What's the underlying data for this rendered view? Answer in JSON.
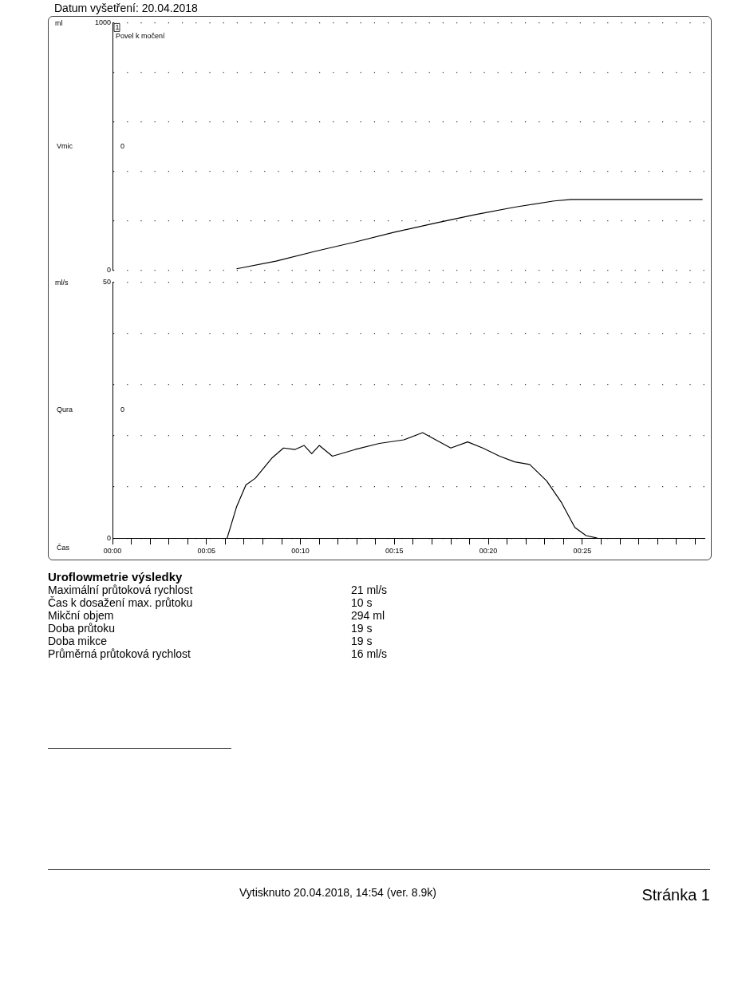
{
  "chart_data": [
    {
      "type": "other",
      "title": "Datum vyšetření: 20.04.2018"
    },
    {
      "type": "line",
      "ylabel": "Vmic",
      "xlim": [
        0,
        31.5
      ],
      "ylim": [
        0,
        1000
      ],
      "yticks": [
        0,
        {
          "value": 200,
          "label": null
        },
        {
          "value": 400,
          "label": null
        },
        {
          "value": 600,
          "label": null
        },
        {
          "value": 800,
          "label": null
        },
        1000
      ],
      "grid": "y",
      "tick_labels": "y",
      "marker": "none",
      "line_style": "solid",
      "annotations": [
        "ml",
        "0",
        "1",
        "Povel k močení"
      ],
      "series": [
        {
          "color": "#000000",
          "x": [
            6.6,
            8.7,
            10.8,
            12.9,
            15.0,
            17.2,
            19.3,
            21.4,
            23.5,
            24.4,
            31.4
          ],
          "values": [
            6,
            37,
            77,
            114,
            154,
            191,
            225,
            255,
            280,
            286,
            286
          ]
        }
      ]
    },
    {
      "type": "line",
      "ylabel": "Qura",
      "xlabel": "Čas",
      "xlim": [
        0,
        31.5
      ],
      "ylim": [
        0,
        50
      ],
      "yticks": [
        0,
        {
          "value": 10,
          "label": null
        },
        {
          "value": 20,
          "label": null
        },
        {
          "value": 30,
          "label": null
        },
        {
          "value": 40,
          "label": null
        },
        50
      ],
      "xticks": [
        {
          "value": 0,
          "label": "00:00"
        },
        {
          "value": 1,
          "label": null
        },
        {
          "value": 2,
          "label": null
        },
        {
          "value": 3,
          "label": null
        },
        {
          "value": 4,
          "label": null
        },
        {
          "value": 5,
          "label": "00:05"
        },
        {
          "value": 6,
          "label": null
        },
        {
          "value": 7,
          "label": null
        },
        {
          "value": 8,
          "label": null
        },
        {
          "value": 9,
          "label": null
        },
        {
          "value": 10,
          "label": "00:10"
        },
        {
          "value": 11,
          "label": null
        },
        {
          "value": 12,
          "label": null
        },
        {
          "value": 13,
          "label": null
        },
        {
          "value": 14,
          "label": null
        },
        {
          "value": 15,
          "label": "00:15"
        },
        {
          "value": 16,
          "label": null
        },
        {
          "value": 17,
          "label": null
        },
        {
          "value": 18,
          "label": null
        },
        {
          "value": 19,
          "label": null
        },
        {
          "value": 20,
          "label": "00:20"
        },
        {
          "value": 21,
          "label": null
        },
        {
          "value": 22,
          "label": null
        },
        {
          "value": 23,
          "label": null
        },
        {
          "value": 24,
          "label": null
        },
        {
          "value": 25,
          "label": "00:25"
        },
        {
          "value": 26,
          "label": null
        },
        {
          "value": 27,
          "label": null
        },
        {
          "value": 28,
          "label": null
        },
        {
          "value": 29,
          "label": null
        },
        {
          "value": 30,
          "label": null
        },
        {
          "value": 31,
          "label": null
        }
      ],
      "grid": "y",
      "marker": "none",
      "line_style": "solid",
      "annotations": [
        "ml/s",
        "0"
      ],
      "series": [
        {
          "color": "#000000",
          "x": [
            6.1,
            6.6,
            7.1,
            7.6,
            8.5,
            9.1,
            9.7,
            10.2,
            10.6,
            11.0,
            11.7,
            12.9,
            14.2,
            15.5,
            16.5,
            17.2,
            18.0,
            18.9,
            19.7,
            20.6,
            21.4,
            22.2,
            23.1,
            23.9,
            24.6,
            25.2,
            25.8
          ],
          "values": [
            0,
            6.1,
            10.4,
            11.7,
            15.7,
            17.6,
            17.3,
            18.1,
            16.5,
            18.1,
            16.0,
            17.3,
            18.5,
            19.2,
            20.6,
            19.2,
            17.6,
            18.8,
            17.6,
            16.0,
            14.9,
            14.4,
            11.2,
            6.9,
            2.1,
            0.5,
            0
          ]
        }
      ]
    },
    {
      "type": "other",
      "title": "Uroflowmetrie výsledky",
      "annotations": [
        "Maximální průtoková rychlost",
        "21 ml/s",
        "Čas k dosažení max. průtoku",
        "10 s",
        "Mikční objem",
        "294 ml",
        "Doba průtoku",
        "19 s",
        "Doba mikce",
        "19 s",
        "Průměrná průtoková rychlost",
        "16 ml/s"
      ]
    },
    {
      "type": "other",
      "annotations": [
        "Vytisknuto 20.04.2018, 14:54 (ver. 8.9k)",
        "Stránka 1"
      ]
    }
  ]
}
